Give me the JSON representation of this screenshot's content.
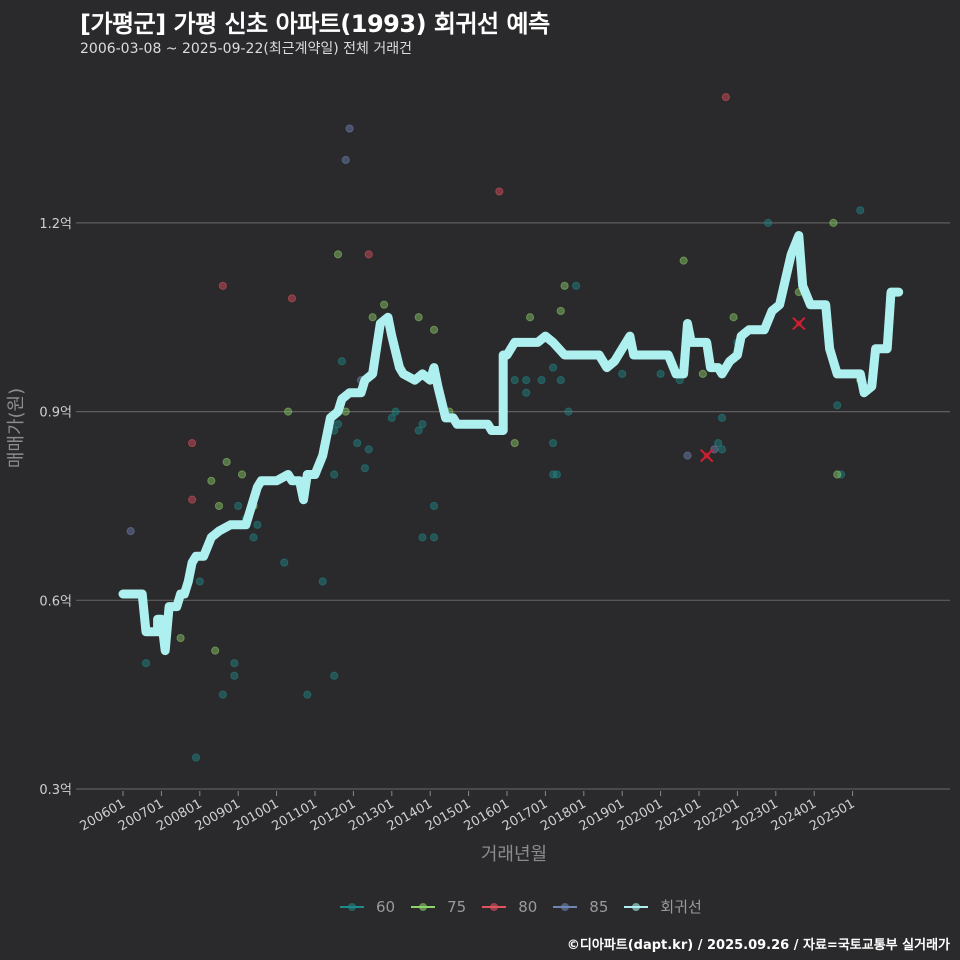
{
  "header": {
    "title": "[가평군] 가평 신초 아파트(1993) 회귀선 예측",
    "subtitle": "2006-03-08 ~ 2025-09-22(최근계약일) 전체 거래건"
  },
  "axes": {
    "y_title": "매매가(원)",
    "x_title": "거래년월",
    "y_ticks": [
      "0.3억",
      "0.6억",
      "0.9억",
      "1.2억"
    ],
    "x_ticks": [
      "200601",
      "200701",
      "200801",
      "200901",
      "201001",
      "201101",
      "201201",
      "201301",
      "201401",
      "201501",
      "201601",
      "201701",
      "201801",
      "201901",
      "202001",
      "202101",
      "202201",
      "202301",
      "202401",
      "202501"
    ]
  },
  "legend": {
    "items": [
      {
        "label": "60",
        "color": "#1f8a8a"
      },
      {
        "label": "75",
        "color": "#8fd16a"
      },
      {
        "label": "80",
        "color": "#e0535f"
      },
      {
        "label": "85",
        "color": "#6f86b3"
      },
      {
        "label": "회귀선",
        "color": "#aef0ef"
      }
    ]
  },
  "footer": {
    "credit": "©디아파트(dapt.kr) / 2025.09.26 / 자료=국토교통부 실거래가"
  },
  "chart_data": {
    "type": "scatter",
    "title": "[가평군] 가평 신초 아파트(1993) 회귀선 예측",
    "subtitle": "2006-03-08 ~ 2025-09-22(최근계약일) 전체 거래건",
    "xlabel": "거래년월",
    "ylabel": "매매가(원)",
    "ylim": [
      0.3,
      1.45
    ],
    "y_unit": "억",
    "y_ticks": [
      0.3,
      0.6,
      0.9,
      1.2
    ],
    "x_ticks": [
      "200601",
      "200701",
      "200801",
      "200901",
      "201001",
      "201101",
      "201201",
      "201301",
      "201401",
      "201501",
      "201601",
      "201701",
      "201801",
      "201901",
      "202001",
      "202101",
      "202201",
      "202301",
      "202401",
      "202501"
    ],
    "grid": "horizontal",
    "legend_position": "bottom",
    "series": [
      {
        "name": "60",
        "color": "#1f8a8a",
        "points": [
          [
            2006.6,
            0.5
          ],
          [
            2007.9,
            0.35
          ],
          [
            2008.0,
            0.63
          ],
          [
            2008.6,
            0.45
          ],
          [
            2008.9,
            0.5
          ],
          [
            2008.9,
            0.48
          ],
          [
            2009.0,
            0.75
          ],
          [
            2009.2,
            0.73
          ],
          [
            2009.4,
            0.7
          ],
          [
            2009.5,
            0.72
          ],
          [
            2010.2,
            0.66
          ],
          [
            2010.8,
            0.45
          ],
          [
            2011.2,
            0.63
          ],
          [
            2011.5,
            0.48
          ],
          [
            2011.5,
            0.8
          ],
          [
            2011.5,
            0.87
          ],
          [
            2011.6,
            0.88
          ],
          [
            2011.7,
            0.98
          ],
          [
            2012.1,
            0.85
          ],
          [
            2012.3,
            0.81
          ],
          [
            2012.4,
            0.84
          ],
          [
            2013.0,
            0.89
          ],
          [
            2013.1,
            0.9
          ],
          [
            2013.7,
            0.87
          ],
          [
            2013.8,
            0.88
          ],
          [
            2013.8,
            0.7
          ],
          [
            2014.1,
            0.75
          ],
          [
            2014.1,
            0.7
          ],
          [
            2014.4,
            0.9
          ],
          [
            2016.2,
            0.95
          ],
          [
            2016.5,
            0.95
          ],
          [
            2016.5,
            0.93
          ],
          [
            2016.9,
            0.95
          ],
          [
            2017.2,
            0.97
          ],
          [
            2017.2,
            0.85
          ],
          [
            2017.2,
            0.8
          ],
          [
            2017.3,
            0.8
          ],
          [
            2017.4,
            0.95
          ],
          [
            2017.6,
            0.9
          ],
          [
            2017.8,
            1.1
          ],
          [
            2019.0,
            0.96
          ],
          [
            2020.0,
            0.96
          ],
          [
            2020.5,
            0.95
          ],
          [
            2021.5,
            0.85
          ],
          [
            2021.6,
            0.84
          ],
          [
            2021.6,
            0.89
          ],
          [
            2022.0,
            1.01
          ],
          [
            2022.8,
            1.2
          ],
          [
            2024.6,
            0.91
          ],
          [
            2025.2,
            1.22
          ],
          [
            2024.7,
            0.8
          ]
        ]
      },
      {
        "name": "75",
        "color": "#8fd16a",
        "points": [
          [
            2007.5,
            0.54
          ],
          [
            2008.3,
            0.79
          ],
          [
            2008.4,
            0.52
          ],
          [
            2008.5,
            0.75
          ],
          [
            2008.7,
            0.82
          ],
          [
            2009.1,
            0.8
          ],
          [
            2009.4,
            0.75
          ],
          [
            2010.3,
            0.9
          ],
          [
            2011.6,
            1.15
          ],
          [
            2011.8,
            0.9
          ],
          [
            2012.5,
            1.05
          ],
          [
            2012.8,
            1.07
          ],
          [
            2013.7,
            1.05
          ],
          [
            2014.1,
            1.03
          ],
          [
            2014.5,
            0.9
          ],
          [
            2016.2,
            0.85
          ],
          [
            2016.6,
            1.05
          ],
          [
            2017.4,
            1.06
          ],
          [
            2017.5,
            1.1
          ],
          [
            2020.6,
            1.14
          ],
          [
            2021.1,
            0.96
          ],
          [
            2021.9,
            1.05
          ],
          [
            2023.6,
            1.09
          ],
          [
            2024.5,
            1.2
          ],
          [
            2024.6,
            0.8
          ],
          [
            2025.2,
            0.95
          ]
        ]
      },
      {
        "name": "80",
        "color": "#e0535f",
        "points": [
          [
            2007.8,
            0.85
          ],
          [
            2007.8,
            0.76
          ],
          [
            2008.6,
            1.1
          ],
          [
            2010.4,
            1.08
          ],
          [
            2012.4,
            1.15
          ],
          [
            2015.8,
            1.25
          ],
          [
            2021.7,
            1.4
          ]
        ]
      },
      {
        "name": "85",
        "color": "#6f86b3",
        "points": [
          [
            2006.2,
            0.71
          ],
          [
            2011.8,
            1.3
          ],
          [
            2011.9,
            1.35
          ],
          [
            2012.2,
            0.95
          ],
          [
            2020.7,
            0.83
          ],
          [
            2021.4,
            0.84
          ]
        ]
      },
      {
        "name": "회귀선",
        "color": "#aef0ef",
        "type": "line",
        "points": [
          [
            2006.0,
            0.61
          ],
          [
            2006.5,
            0.61
          ],
          [
            2006.6,
            0.55
          ],
          [
            2006.9,
            0.55
          ],
          [
            2006.9,
            0.57
          ],
          [
            2007.0,
            0.57
          ],
          [
            2007.1,
            0.52
          ],
          [
            2007.2,
            0.59
          ],
          [
            2007.4,
            0.59
          ],
          [
            2007.5,
            0.61
          ],
          [
            2007.6,
            0.61
          ],
          [
            2007.7,
            0.63
          ],
          [
            2007.8,
            0.66
          ],
          [
            2007.9,
            0.67
          ],
          [
            2008.1,
            0.67
          ],
          [
            2008.3,
            0.7
          ],
          [
            2008.5,
            0.71
          ],
          [
            2008.8,
            0.72
          ],
          [
            2009.2,
            0.72
          ],
          [
            2009.3,
            0.74
          ],
          [
            2009.5,
            0.78
          ],
          [
            2009.6,
            0.79
          ],
          [
            2010.0,
            0.79
          ],
          [
            2010.3,
            0.8
          ],
          [
            2010.4,
            0.79
          ],
          [
            2010.6,
            0.79
          ],
          [
            2010.7,
            0.76
          ],
          [
            2010.8,
            0.8
          ],
          [
            2011.0,
            0.8
          ],
          [
            2011.2,
            0.83
          ],
          [
            2011.4,
            0.89
          ],
          [
            2011.6,
            0.9
          ],
          [
            2011.7,
            0.92
          ],
          [
            2011.9,
            0.93
          ],
          [
            2012.2,
            0.93
          ],
          [
            2012.3,
            0.95
          ],
          [
            2012.5,
            0.96
          ],
          [
            2012.7,
            1.04
          ],
          [
            2012.9,
            1.05
          ],
          [
            2013.0,
            1.02
          ],
          [
            2013.2,
            0.97
          ],
          [
            2013.3,
            0.96
          ],
          [
            2013.6,
            0.95
          ],
          [
            2013.8,
            0.96
          ],
          [
            2014.0,
            0.95
          ],
          [
            2014.1,
            0.97
          ],
          [
            2014.2,
            0.94
          ],
          [
            2014.4,
            0.89
          ],
          [
            2014.6,
            0.89
          ],
          [
            2014.7,
            0.88
          ],
          [
            2015.1,
            0.88
          ],
          [
            2015.5,
            0.88
          ],
          [
            2015.6,
            0.87
          ],
          [
            2015.9,
            0.87
          ],
          [
            2015.9,
            0.99
          ],
          [
            2016.0,
            0.99
          ],
          [
            2016.2,
            1.01
          ],
          [
            2016.8,
            1.01
          ],
          [
            2017.0,
            1.02
          ],
          [
            2017.2,
            1.01
          ],
          [
            2017.5,
            0.99
          ],
          [
            2017.6,
            0.99
          ],
          [
            2018.4,
            0.99
          ],
          [
            2018.6,
            0.97
          ],
          [
            2018.8,
            0.98
          ],
          [
            2019.0,
            1.0
          ],
          [
            2019.2,
            1.02
          ],
          [
            2019.3,
            0.99
          ],
          [
            2020.2,
            0.99
          ],
          [
            2020.4,
            0.96
          ],
          [
            2020.6,
            0.96
          ],
          [
            2020.7,
            1.04
          ],
          [
            2020.8,
            1.01
          ],
          [
            2021.2,
            1.01
          ],
          [
            2021.3,
            0.97
          ],
          [
            2021.5,
            0.97
          ],
          [
            2021.6,
            0.96
          ],
          [
            2021.8,
            0.98
          ],
          [
            2022.0,
            0.99
          ],
          [
            2022.1,
            1.02
          ],
          [
            2022.3,
            1.03
          ],
          [
            2022.7,
            1.03
          ],
          [
            2022.9,
            1.06
          ],
          [
            2023.1,
            1.07
          ],
          [
            2023.4,
            1.15
          ],
          [
            2023.6,
            1.18
          ],
          [
            2023.7,
            1.1
          ],
          [
            2023.9,
            1.07
          ],
          [
            2024.3,
            1.07
          ],
          [
            2024.4,
            1.0
          ],
          [
            2024.6,
            0.96
          ],
          [
            2025.2,
            0.96
          ],
          [
            2025.3,
            0.93
          ],
          [
            2025.5,
            0.94
          ],
          [
            2025.6,
            1.0
          ],
          [
            2025.9,
            1.0
          ],
          [
            2026.0,
            1.09
          ],
          [
            2026.2,
            1.09
          ]
        ]
      }
    ],
    "markers": [
      {
        "type": "x",
        "color": "#d02030",
        "point": [
          2021.2,
          0.83
        ]
      },
      {
        "type": "x",
        "color": "#d02030",
        "point": [
          2023.6,
          1.04
        ]
      }
    ]
  }
}
